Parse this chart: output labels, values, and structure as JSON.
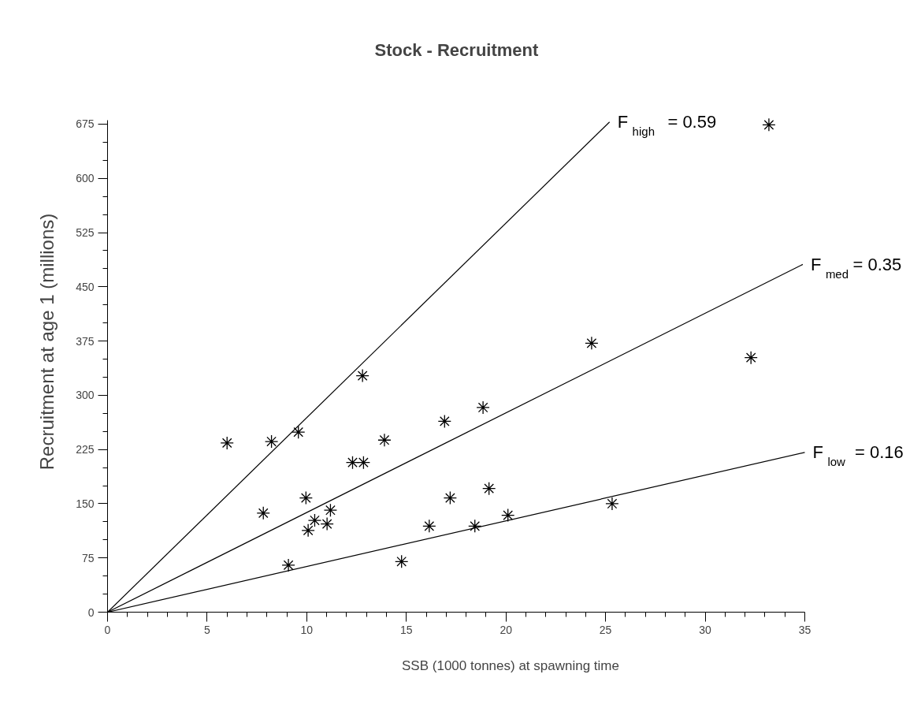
{
  "chart_data": {
    "type": "scatter",
    "title": "Stock - Recruitment",
    "xlabel": "SSB (1000 tonnes) at spawning time",
    "ylabel": "Recruitment at age 1 (millions)",
    "xlim": [
      0,
      35
    ],
    "ylim": [
      0,
      680
    ],
    "xticks": [
      0,
      5,
      10,
      15,
      20,
      25,
      30,
      35
    ],
    "yticks": [
      0,
      75,
      150,
      225,
      300,
      375,
      450,
      525,
      600,
      675
    ],
    "grid": false,
    "series": [
      {
        "marker": "cross",
        "color": "#000000",
        "x": [
          6.0,
          8.23,
          9.58,
          12.8,
          13.9,
          12.3,
          12.85,
          9.96,
          7.82,
          11.19,
          10.4,
          11.02,
          10.07,
          9.08,
          14.76,
          16.15,
          16.92,
          18.85,
          17.2,
          19.15,
          18.44,
          20.1,
          25.33,
          32.3,
          24.3,
          33.2
        ],
        "values": [
          234,
          236,
          249,
          327,
          238,
          207,
          207,
          158,
          137,
          141,
          127,
          122,
          113,
          65,
          70,
          119,
          264,
          283,
          158,
          171,
          119,
          134,
          150,
          352,
          372,
          674
        ]
      },
      {
        "type": "line",
        "name": "F$_{high}$ = 0.59",
        "color": "#000000",
        "x": [
          0,
          25.2
        ],
        "values": [
          0,
          678
        ]
      },
      {
        "type": "line",
        "name": "F$_{med}$ = 0.35",
        "color": "#000000",
        "x": [
          0,
          34.9
        ],
        "values": [
          0,
          481
        ]
      },
      {
        "type": "line",
        "name": "F$_{low}$ = 0.16",
        "color": "#000000",
        "x": [
          0,
          35
        ],
        "values": [
          0,
          221
        ]
      }
    ]
  }
}
